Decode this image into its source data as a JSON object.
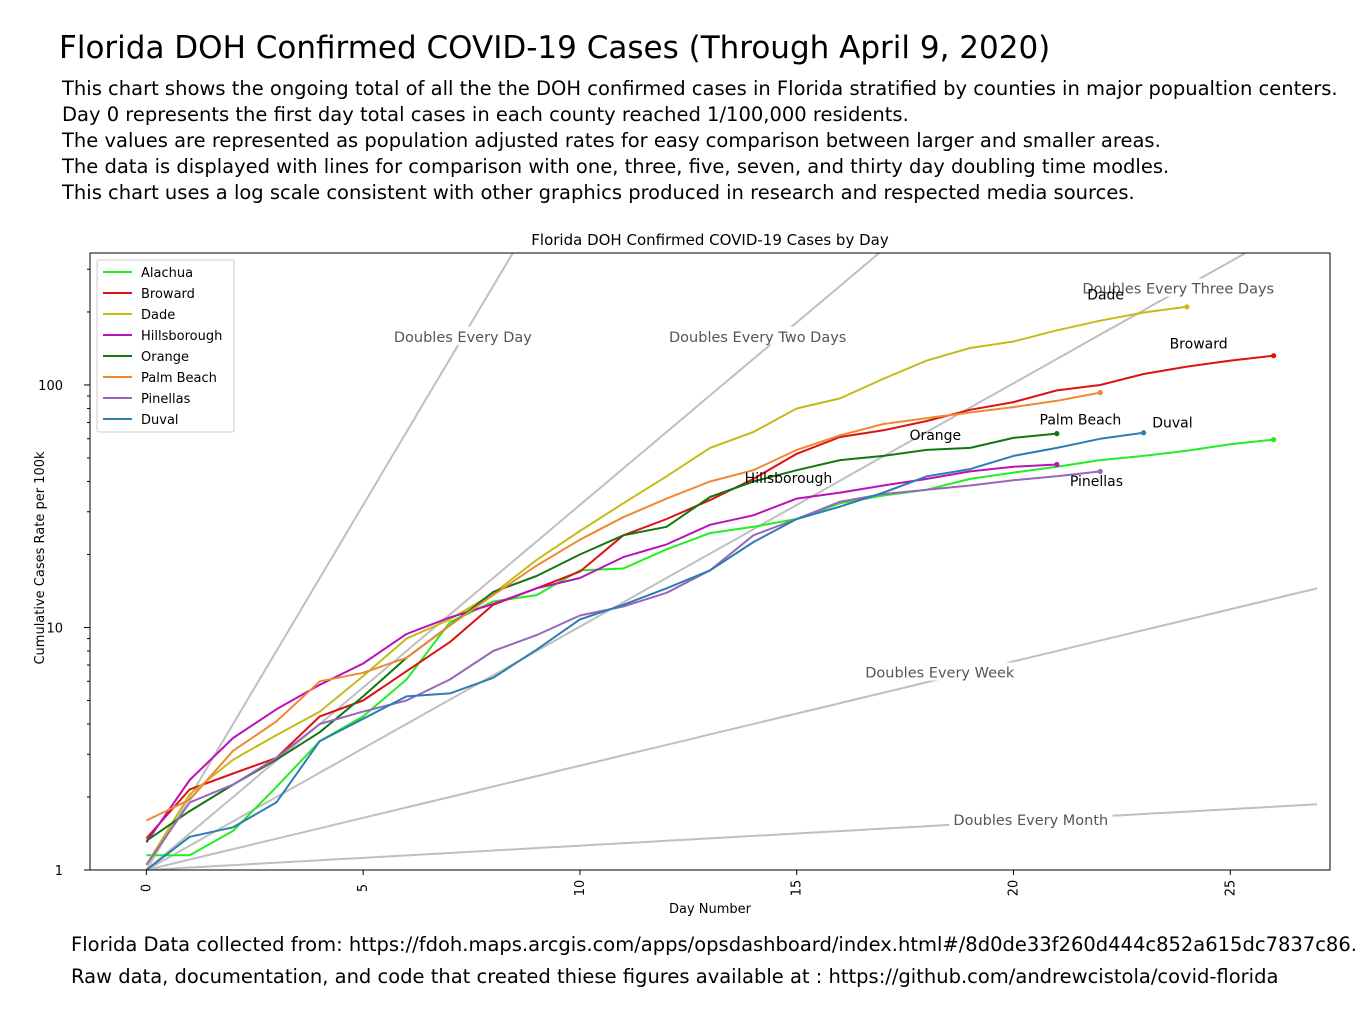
{
  "header": {
    "title": "Florida DOH Confirmed COVID-19 Cases (Through April 9, 2020)",
    "description_lines": [
      "This chart shows the ongoing total of all the the DOH confirmed cases in Florida stratified by counties in major popualtion centers.",
      "Day 0 represents the first day total cases in each county reached 1/100,000 residents.",
      "The values are represented as population adjusted rates for easy comparison between larger and smaller areas.",
      "The data is displayed with lines for comparison with one, three, five, seven, and thirty day doubling time modles.",
      "This chart uses a log scale consistent with other graphics produced in research and respected media sources."
    ]
  },
  "footer": {
    "line1": "Florida Data collected from:  https://fdoh.maps.arcgis.com/apps/opsdashboard/index.html#/8d0de33f260d444c852a615dc7837c86.",
    "line2": "Raw data, documentation, and code that created thiese figures available at : https://github.com/andrewcistola/covid-florida"
  },
  "chart_data": {
    "type": "line",
    "title": "Florida DOH Confirmed COVID-19 Cases by Day",
    "xlabel": "Day Number",
    "ylabel": "Cumulative Cases Rate per 100k",
    "xlim": [
      -1.3,
      27.3
    ],
    "ylim": [
      1,
      350
    ],
    "yscale": "log",
    "xticks": [
      0,
      5,
      10,
      15,
      20,
      25
    ],
    "yticks": [
      1,
      10,
      100
    ],
    "ytick_labels": [
      "1",
      "10",
      "100"
    ],
    "grid": false,
    "legend_position": "top-left",
    "reference_lines": [
      {
        "label": "Doubles Every Day",
        "doubling_days": 1,
        "color": "#bfbfbf",
        "label_x": 7.3,
        "label_y": 155
      },
      {
        "label": "Doubles Every Two Days",
        "doubling_days": 2,
        "color": "#bfbfbf",
        "label_x": 14.1,
        "label_y": 155
      },
      {
        "label": "Doubles Every Three Days",
        "doubling_days": 3,
        "color": "#bfbfbf",
        "label_x": 23.8,
        "label_y": 245
      },
      {
        "label": "Doubles Every Week",
        "doubling_days": 7,
        "color": "#bfbfbf",
        "label_x": 18.3,
        "label_y": 6.4
      },
      {
        "label": "Doubles Every Month",
        "doubling_days": 30,
        "color": "#bfbfbf",
        "label_x": 20.4,
        "label_y": 1.58
      }
    ],
    "series": [
      {
        "name": "Alachua",
        "color": "#22ee22",
        "end_label": "Alachua",
        "end_label_dx": 4,
        "end_label_dy": 1.06,
        "values": [
          1.15,
          1.15,
          1.45,
          2.2,
          3.4,
          4.3,
          6.1,
          10.5,
          12.8,
          13.6,
          17.2,
          17.5,
          21,
          24.5,
          26,
          28,
          32.5,
          35,
          37,
          41,
          43.5,
          46,
          49,
          51,
          53.5,
          57,
          59.5
        ]
      },
      {
        "name": "Broward",
        "color": "#dd1111",
        "end_label": "Broward",
        "end_label_dx": -2.4,
        "end_label_dy": 1.07,
        "values": [
          1.35,
          2.15,
          2.5,
          2.9,
          4.3,
          5.0,
          6.6,
          8.7,
          12.4,
          14.5,
          17,
          24,
          28,
          33.5,
          41,
          52,
          61,
          65,
          71,
          79,
          85,
          95,
          100,
          111,
          119,
          126,
          132
        ]
      },
      {
        "name": "Dade",
        "color": "#c4bc16",
        "end_label": "Dade",
        "end_label_dx": -2.3,
        "end_label_dy": 1.07,
        "values": [
          1.05,
          2.05,
          2.85,
          3.6,
          4.5,
          6.3,
          9,
          10.8,
          13.8,
          19,
          25,
          32.5,
          42,
          55,
          64,
          80,
          88,
          106,
          126,
          142,
          151,
          168,
          184,
          199,
          210
        ]
      },
      {
        "name": "Hillsborough",
        "color": "#bb11bb",
        "end_label": "Hillsborough",
        "end_label_dx": -7.2,
        "end_label_dy": 0.84,
        "values": [
          1.3,
          2.35,
          3.5,
          4.6,
          5.8,
          7.1,
          9.4,
          11,
          12.5,
          14.5,
          16,
          19.5,
          22,
          26.5,
          29,
          34,
          36,
          38.5,
          41,
          44,
          46,
          47
        ]
      },
      {
        "name": "Orange",
        "color": "#117711",
        "end_label": "Orange",
        "end_label_dx": -3.4,
        "end_label_dy": 0.94,
        "values": [
          1.32,
          1.75,
          2.25,
          2.85,
          3.7,
          5.2,
          7.5,
          10.2,
          14,
          16.3,
          20,
          24,
          26,
          34.5,
          40,
          44.5,
          49,
          51,
          54,
          55,
          60.5,
          63
        ]
      },
      {
        "name": "Palm Beach",
        "color": "#ee8833",
        "end_label": "Palm Beach",
        "end_label_dx": -1.4,
        "end_label_dy": 0.74,
        "values": [
          1.6,
          1.95,
          3.1,
          4.1,
          6.0,
          6.5,
          7.5,
          10.2,
          13.6,
          18,
          23,
          28.5,
          34,
          40,
          44.5,
          54,
          62,
          69,
          73,
          77,
          81,
          86,
          93
        ]
      },
      {
        "name": "Pinellas",
        "color": "#9966bb",
        "end_label": "Pinellas",
        "end_label_dx": -0.7,
        "end_label_dy": 0.87,
        "values": [
          1.05,
          1.9,
          2.25,
          2.9,
          4.0,
          4.5,
          5.0,
          6.1,
          8.0,
          9.3,
          11.2,
          12.2,
          13.9,
          17.2,
          24,
          28,
          33,
          35.5,
          37,
          38.5,
          40.5,
          42,
          44
        ]
      },
      {
        "name": "Duval",
        "color": "#2d7db2",
        "end_label": "Duval",
        "end_label_dx": 0.2,
        "end_label_dy": 1.05,
        "values": [
          1.0,
          1.37,
          1.5,
          1.9,
          3.4,
          4.2,
          5.2,
          5.35,
          6.2,
          8.1,
          10.8,
          12.4,
          14.5,
          17.2,
          22.5,
          28,
          31.5,
          36,
          42,
          45,
          51,
          55,
          60,
          63.5
        ]
      }
    ]
  }
}
